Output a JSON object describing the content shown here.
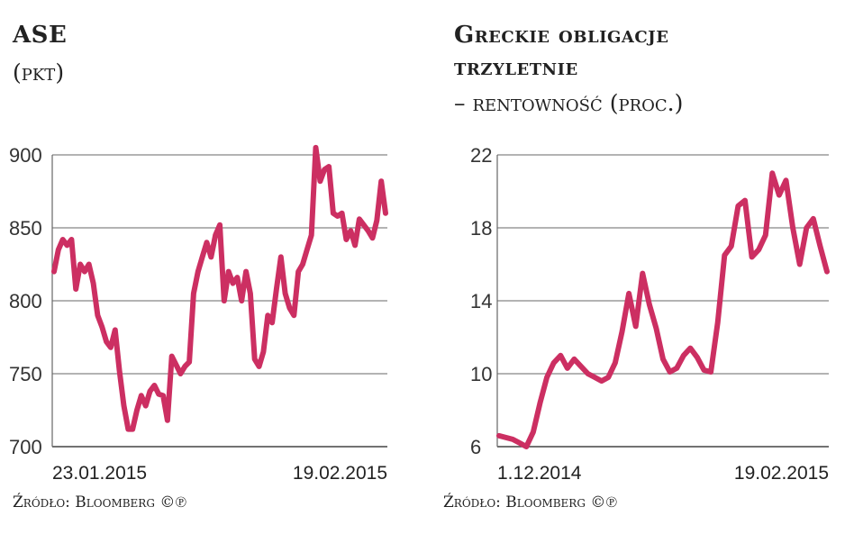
{
  "charts": [
    {
      "id": "ase",
      "title": "ASE",
      "subtitle": "(pkt)",
      "source": "Źródło: Bloomberg ©℗",
      "chart_data": {
        "type": "line",
        "title": "ASE",
        "ylabel": "(pkt)",
        "ylim": [
          700,
          900
        ],
        "yticks": [
          700,
          750,
          800,
          850,
          900
        ],
        "xtick_labels": [
          "23.01.2015",
          "19.02.2015"
        ],
        "grid": true,
        "color": "#cc2f62",
        "values": [
          820,
          835,
          842,
          838,
          842,
          808,
          825,
          820,
          825,
          812,
          790,
          782,
          772,
          768,
          780,
          752,
          728,
          712,
          712,
          725,
          735,
          728,
          738,
          742,
          736,
          735,
          718,
          762,
          756,
          750,
          755,
          758,
          805,
          820,
          830,
          840,
          830,
          845,
          852,
          800,
          820,
          812,
          816,
          800,
          820,
          805,
          760,
          755,
          765,
          790,
          785,
          808,
          830,
          805,
          795,
          790,
          820,
          825,
          835,
          845,
          905,
          882,
          890,
          892,
          860,
          858,
          860,
          842,
          848,
          838,
          856,
          852,
          848,
          843,
          855,
          882,
          860
        ]
      }
    },
    {
      "id": "greek-bonds",
      "title_line1": "Greckie obligacje",
      "title_line2": "trzyletnie",
      "subtitle": "– rentowność (proc.)",
      "source": "Źródło: Bloomberg ©℗",
      "chart_data": {
        "type": "line",
        "title": "Greckie obligacje trzyletnie",
        "ylabel": "– rentowność (proc.)",
        "ylim": [
          6,
          22
        ],
        "yticks": [
          6,
          10,
          14,
          18,
          22
        ],
        "xtick_labels": [
          "1.12.2014",
          "19.02.2015"
        ],
        "grid": true,
        "color": "#cc2f62",
        "values": [
          6.6,
          6.5,
          6.4,
          6.2,
          6.0,
          6.8,
          8.4,
          9.8,
          10.6,
          11.0,
          10.3,
          10.8,
          10.4,
          10.0,
          9.8,
          9.6,
          9.8,
          10.6,
          12.3,
          14.4,
          12.6,
          15.5,
          13.8,
          12.5,
          10.8,
          10.1,
          10.3,
          11.0,
          11.4,
          10.9,
          10.2,
          10.1,
          12.8,
          16.5,
          17.0,
          19.2,
          19.5,
          16.4,
          16.8,
          17.6,
          21.0,
          19.8,
          20.6,
          18.0,
          16.0,
          18.0,
          18.5,
          17.0,
          15.6
        ]
      }
    }
  ]
}
